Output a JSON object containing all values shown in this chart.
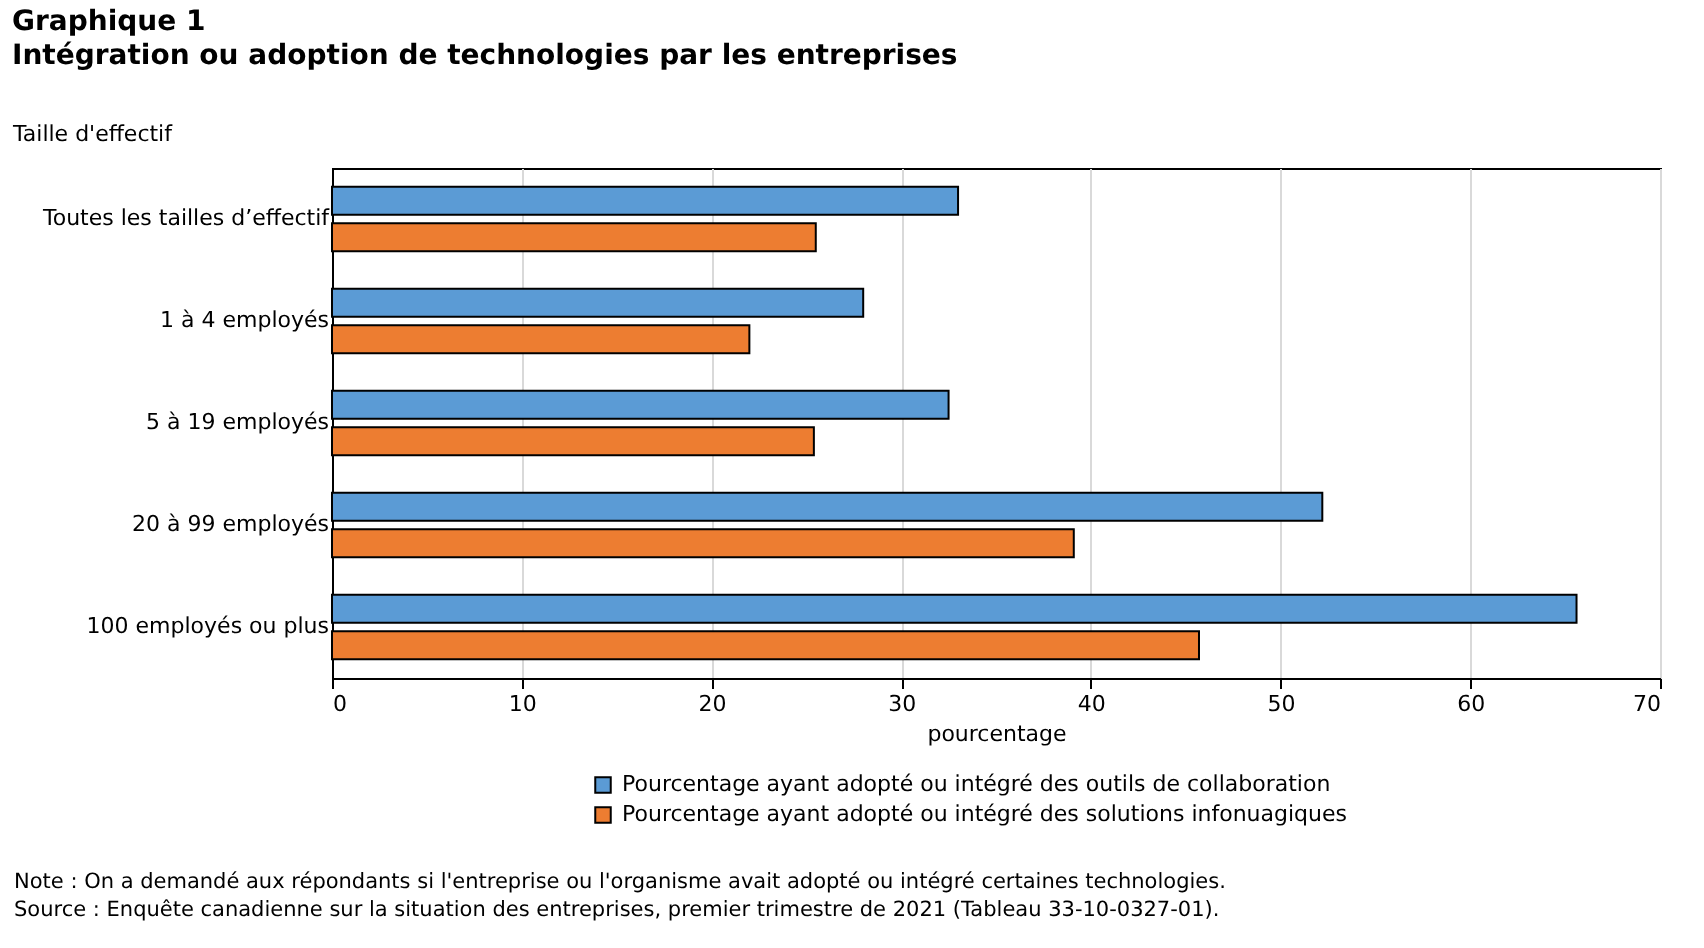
{
  "chart_data": {
    "type": "bar",
    "orientation": "horizontal",
    "title": "Graphique 1",
    "subtitle": "Intégration ou adoption de technologies par les entreprises",
    "ylabel": "Taille d'effectif",
    "xlabel": "pourcentage",
    "categories": [
      "Toutes les tailles d’effectif",
      "1 à 4 employés",
      "5 à 19 employés",
      "20 à 99 employés",
      "100 employés ou plus"
    ],
    "series": [
      {
        "name": "Pourcentage ayant adopté ou intégré des outils de collaboration",
        "color": "#5b9bd5",
        "values": [
          33.0,
          28.0,
          32.5,
          52.2,
          65.6
        ]
      },
      {
        "name": "Pourcentage ayant adopté ou intégré des solutions infonuagiques",
        "color": "#ed7d31",
        "values": [
          25.5,
          22.0,
          25.4,
          39.1,
          45.7
        ]
      }
    ],
    "xlim": [
      0,
      70
    ],
    "xticks": [
      0,
      10,
      20,
      30,
      40,
      50,
      60,
      70
    ],
    "grid": "x",
    "legend": "bottom",
    "annotations": [
      "Note : On a demandé aux répondants si l'entreprise ou l'organisme avait adopté ou intégré certaines technologies.",
      "Source : Enquête canadienne sur la situation des entreprises, premier trimestre de 2021 (Tableau 33-10-0327-01)."
    ]
  }
}
